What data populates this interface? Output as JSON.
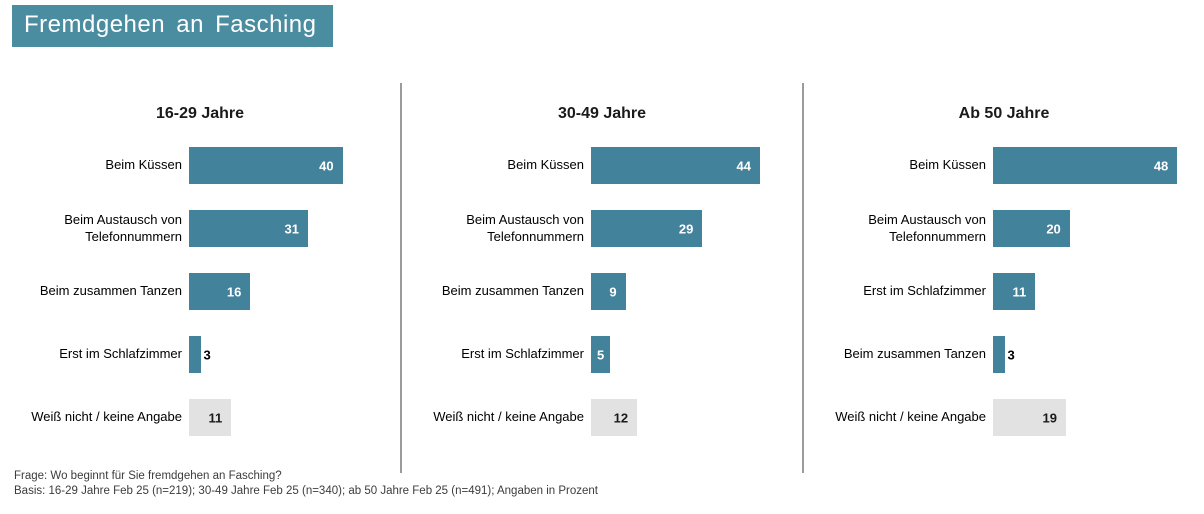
{
  "title": "Fremdgehen an Fasching",
  "colors": {
    "banner_teal": "#4A8CA0",
    "bar_teal": "#43829B",
    "bar_gray": "#E2E2E2",
    "divider_gray": "#9B9B9B"
  },
  "footer": {
    "question": "Frage: Wo beginnt für Sie fremdgehen an Fasching?",
    "basis": "Basis: 16-29 Jahre Feb 25 (n=219); 30-49 Jahre Feb 25 (n=340); ab 50 Jahre Feb 25 (n=491); Angaben in Prozent"
  },
  "chart_data": {
    "type": "bar",
    "orientation": "horizontal",
    "unit": "percent",
    "xlim": [
      0,
      50
    ],
    "grid": false,
    "legend": false,
    "panels": [
      {
        "title": "16-29 Jahre",
        "bars": [
          {
            "label": "Beim Küssen",
            "value": 40,
            "color": "teal"
          },
          {
            "label": "Beim Austausch von Telefonnummern",
            "value": 31,
            "color": "teal"
          },
          {
            "label": "Beim zusammen Tanzen",
            "value": 16,
            "color": "teal"
          },
          {
            "label": "Erst im Schlafzimmer",
            "value": 3,
            "color": "teal"
          },
          {
            "label": "Weiß nicht / keine Angabe",
            "value": 11,
            "color": "gray"
          }
        ]
      },
      {
        "title": "30-49 Jahre",
        "bars": [
          {
            "label": "Beim Küssen",
            "value": 44,
            "color": "teal"
          },
          {
            "label": "Beim Austausch von Telefonnummern",
            "value": 29,
            "color": "teal"
          },
          {
            "label": "Beim zusammen Tanzen",
            "value": 9,
            "color": "teal"
          },
          {
            "label": "Erst im Schlafzimmer",
            "value": 5,
            "color": "teal"
          },
          {
            "label": "Weiß nicht / keine Angabe",
            "value": 12,
            "color": "gray"
          }
        ]
      },
      {
        "title": "Ab 50 Jahre",
        "bars": [
          {
            "label": "Beim Küssen",
            "value": 48,
            "color": "teal"
          },
          {
            "label": "Beim Austausch von Telefonnummern",
            "value": 20,
            "color": "teal"
          },
          {
            "label": "Erst im Schlafzimmer",
            "value": 11,
            "color": "teal"
          },
          {
            "label": "Beim zusammen Tanzen",
            "value": 3,
            "color": "teal"
          },
          {
            "label": "Weiß nicht / keine Angabe",
            "value": 19,
            "color": "gray"
          }
        ]
      }
    ]
  }
}
